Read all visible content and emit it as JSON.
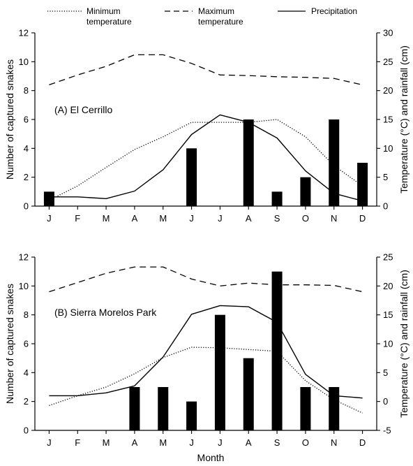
{
  "legend": [
    {
      "key": "min",
      "lines": [
        "Minimum",
        "temperature"
      ],
      "style": "dotted"
    },
    {
      "key": "max",
      "lines": [
        "Maximum",
        "temperature"
      ],
      "style": "dashed"
    },
    {
      "key": "precip",
      "lines": [
        "Precipitation"
      ],
      "style": "solid"
    }
  ],
  "xlabel": "Month",
  "chart_data": [
    {
      "type": "bar",
      "title": "(A) El Cerrillo",
      "categories": [
        "J",
        "F",
        "M",
        "A",
        "M",
        "J",
        "J",
        "A",
        "S",
        "O",
        "N",
        "D"
      ],
      "ylabel_left": "Number of captured snakes",
      "ylabel_right": "Temperature (°C) and rainfall (cm)",
      "ylim_left": [
        0,
        12
      ],
      "yticks_left": [
        0,
        2,
        4,
        6,
        8,
        10,
        12
      ],
      "ylim_right": [
        0,
        30
      ],
      "yticks_right": [
        0,
        5,
        10,
        15,
        20,
        25,
        30
      ],
      "bars": {
        "name": "captured snakes",
        "values": [
          1,
          0,
          0,
          0,
          0,
          4,
          0,
          6,
          1,
          2,
          6,
          3
        ]
      },
      "series": [
        {
          "name": "Minimum temperature",
          "style": "dotted",
          "values": [
            1,
            3.5,
            6.7,
            9.8,
            12,
            14.5,
            14.5,
            14.5,
            15,
            12,
            7,
            3.5
          ]
        },
        {
          "name": "Maximum temperature",
          "style": "dashed",
          "values": [
            21,
            22.7,
            24.2,
            26.2,
            26.2,
            24.7,
            22.7,
            22.6,
            22.4,
            22.3,
            22.1,
            21
          ]
        },
        {
          "name": "Precipitation",
          "style": "solid",
          "values": [
            1.6,
            1.6,
            1.3,
            2.6,
            6.3,
            12.4,
            15.8,
            14.5,
            11.8,
            6.1,
            2.2,
            0.9
          ]
        }
      ]
    },
    {
      "type": "bar",
      "title": "(B) Sierra Morelos Park",
      "categories": [
        "J",
        "F",
        "M",
        "A",
        "M",
        "J",
        "J",
        "A",
        "S",
        "O",
        "N",
        "D"
      ],
      "ylabel_left": "Number of captured snakes",
      "ylabel_right": "Temperature (°C) and rainfall (cm)",
      "ylim_left": [
        0,
        12
      ],
      "yticks_left": [
        0,
        2,
        4,
        6,
        8,
        10,
        12
      ],
      "ylim_right": [
        -5,
        25
      ],
      "yticks_right": [
        -5,
        0,
        5,
        10,
        15,
        20,
        25
      ],
      "bars": {
        "name": "captured snakes",
        "values": [
          0,
          0,
          0,
          3,
          3,
          2,
          8,
          5,
          11,
          3,
          3,
          0
        ]
      },
      "series": [
        {
          "name": "Minimum temperature",
          "style": "dotted",
          "values": [
            -0.7,
            1,
            2.5,
            4.8,
            7.6,
            9.4,
            9.3,
            9,
            8.7,
            3.6,
            0.3,
            -2
          ]
        },
        {
          "name": "Maximum temperature",
          "style": "dashed",
          "values": [
            19,
            20.6,
            22.2,
            23.3,
            23.3,
            21.2,
            20,
            20.5,
            20.2,
            20.2,
            20.1,
            19
          ]
        },
        {
          "name": "Precipitation",
          "style": "solid",
          "values": [
            1,
            1,
            1.5,
            2.7,
            7.7,
            15.1,
            16.6,
            16.4,
            13.7,
            4.7,
            1,
            0.6
          ]
        }
      ]
    }
  ]
}
